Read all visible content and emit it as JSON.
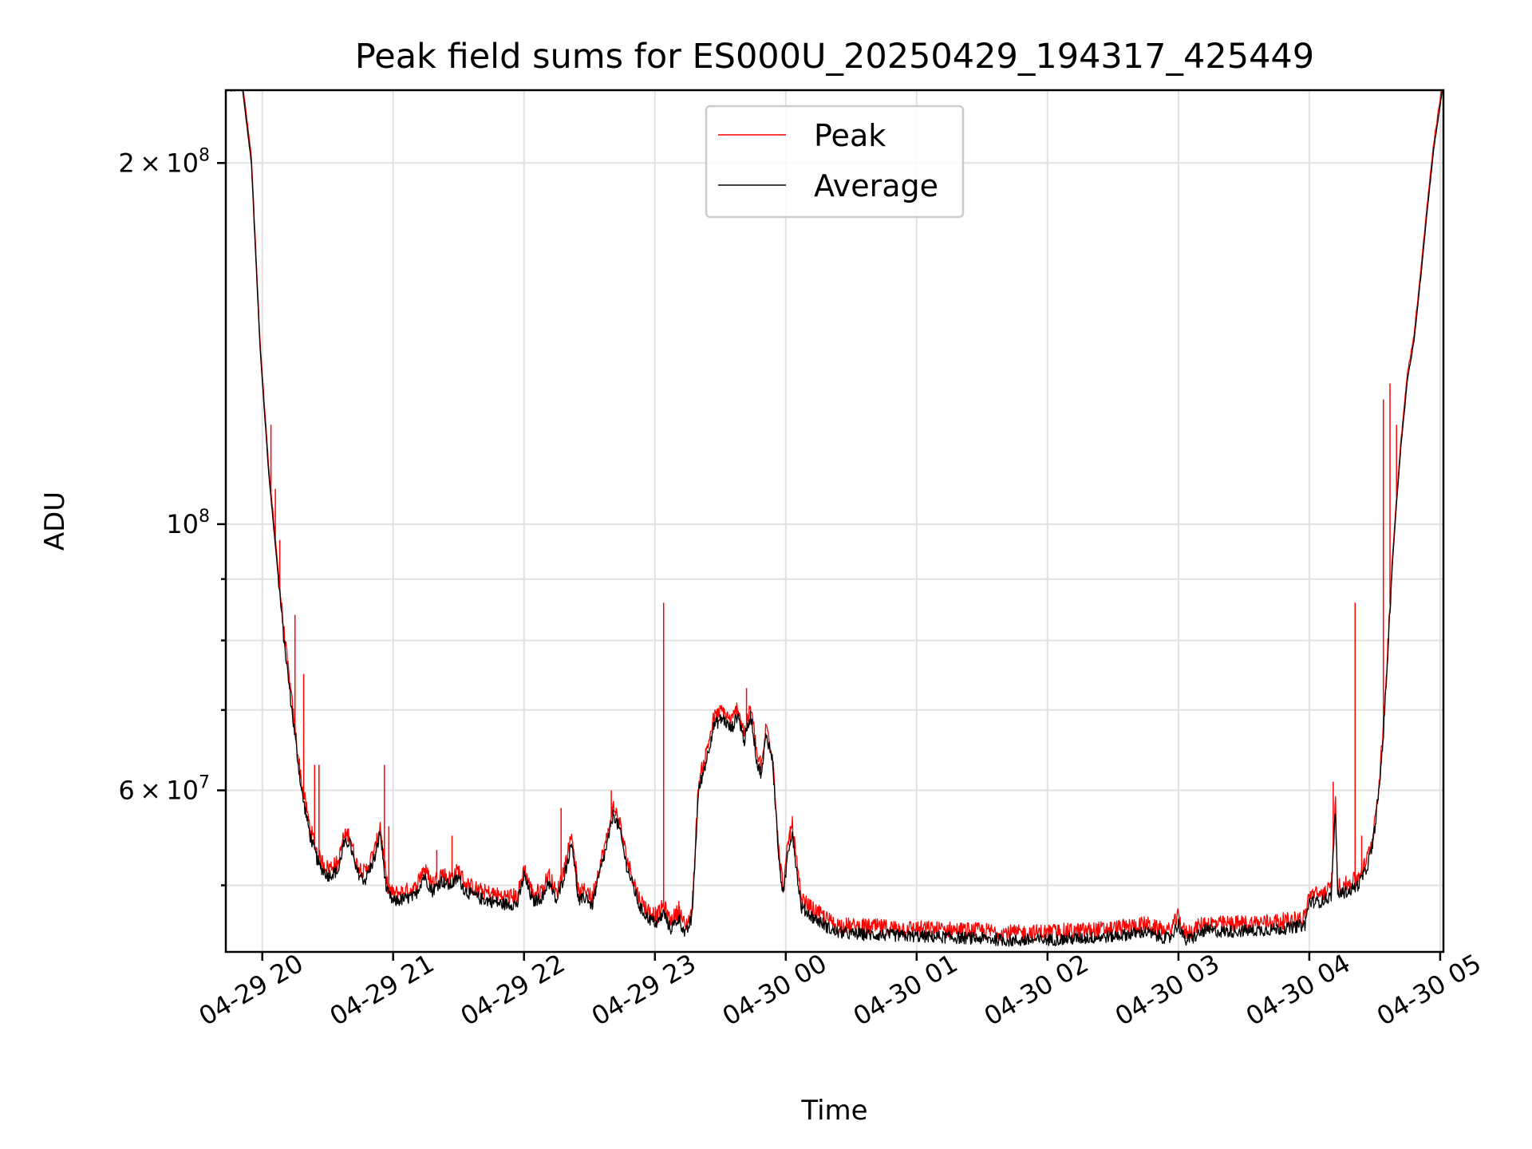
{
  "chart_data": {
    "type": "line",
    "title": "Peak field sums for ES000U_20250429_194317_425449",
    "xlabel": "Time",
    "ylabel": "ADU",
    "y_scale": "log",
    "ylim": [
      44000000,
      230000000
    ],
    "xlim": [
      "2025-04-29 19:43:17",
      "2025-04-30 05:01:30"
    ],
    "grid": true,
    "legend_position": "top-center",
    "x_ticks": [
      {
        "t": "2025-04-29 20:00",
        "label": "04-29 20"
      },
      {
        "t": "2025-04-29 21:00",
        "label": "04-29 21"
      },
      {
        "t": "2025-04-29 22:00",
        "label": "04-29 22"
      },
      {
        "t": "2025-04-29 23:00",
        "label": "04-29 23"
      },
      {
        "t": "2025-04-30 00:00",
        "label": "04-30 00"
      },
      {
        "t": "2025-04-30 01:00",
        "label": "04-30 01"
      },
      {
        "t": "2025-04-30 02:00",
        "label": "04-30 02"
      },
      {
        "t": "2025-04-30 03:00",
        "label": "04-30 03"
      },
      {
        "t": "2025-04-30 04:00",
        "label": "04-30 04"
      },
      {
        "t": "2025-04-30 05:00",
        "label": "04-30 05"
      }
    ],
    "y_ticks": [
      {
        "v": 60000000,
        "label_base": "6 × 10",
        "label_exp": "7"
      },
      {
        "v": 100000000,
        "label_base": "10",
        "label_exp": "8"
      },
      {
        "v": 200000000,
        "label_base": "2 × 10",
        "label_exp": "8"
      }
    ],
    "y_minor_ticks": [
      50000000,
      70000000,
      80000000,
      90000000
    ],
    "series": [
      {
        "name": "Average",
        "color": "#000000",
        "points": [
          [
            "2025-04-29 19:43",
            230000000
          ],
          [
            "2025-04-29 19:51",
            230000000
          ],
          [
            "2025-04-29 19:55",
            200000000
          ],
          [
            "2025-04-29 19:59",
            140000000
          ],
          [
            "2025-04-29 20:03",
            110000000
          ],
          [
            "2025-04-29 20:06",
            96000000
          ],
          [
            "2025-04-29 20:10",
            80000000
          ],
          [
            "2025-04-29 20:14",
            69000000
          ],
          [
            "2025-04-29 20:18",
            60000000
          ],
          [
            "2025-04-29 20:22",
            55000000
          ],
          [
            "2025-04-29 20:26",
            52000000
          ],
          [
            "2025-04-29 20:30",
            51000000
          ],
          [
            "2025-04-29 20:35",
            51500000
          ],
          [
            "2025-04-29 20:37",
            54000000
          ],
          [
            "2025-04-29 20:40",
            54500000
          ],
          [
            "2025-04-29 20:43",
            51500000
          ],
          [
            "2025-04-29 20:47",
            50500000
          ],
          [
            "2025-04-29 20:52",
            53000000
          ],
          [
            "2025-04-29 20:54",
            55500000
          ],
          [
            "2025-04-29 20:57",
            49500000
          ],
          [
            "2025-04-29 21:00",
            48500000
          ],
          [
            "2025-04-29 21:10",
            49000000
          ],
          [
            "2025-04-29 21:14",
            51000000
          ],
          [
            "2025-04-29 21:18",
            49500000
          ],
          [
            "2025-04-29 21:22",
            50500000
          ],
          [
            "2025-04-29 21:26",
            50000000
          ],
          [
            "2025-04-29 21:30",
            50800000
          ],
          [
            "2025-04-29 21:33",
            49500000
          ],
          [
            "2025-04-29 21:40",
            48800000
          ],
          [
            "2025-04-29 21:50",
            48300000
          ],
          [
            "2025-04-29 21:57",
            48300000
          ],
          [
            "2025-04-29 22:00",
            51000000
          ],
          [
            "2025-04-29 22:04",
            48500000
          ],
          [
            "2025-04-29 22:09",
            49000000
          ],
          [
            "2025-04-29 22:11",
            50500000
          ],
          [
            "2025-04-29 22:15",
            48500000
          ],
          [
            "2025-04-29 22:19",
            51500000
          ],
          [
            "2025-04-29 22:22",
            54500000
          ],
          [
            "2025-04-29 22:25",
            48500000
          ],
          [
            "2025-04-29 22:29",
            49000000
          ],
          [
            "2025-04-29 22:31",
            48000000
          ],
          [
            "2025-04-29 22:35",
            51500000
          ],
          [
            "2025-04-29 22:38",
            54000000
          ],
          [
            "2025-04-29 22:41",
            57500000
          ],
          [
            "2025-04-29 22:44",
            55500000
          ],
          [
            "2025-04-29 22:47",
            52000000
          ],
          [
            "2025-04-29 22:50",
            50000000
          ],
          [
            "2025-04-29 22:53",
            48000000
          ],
          [
            "2025-04-29 22:57",
            47000000
          ],
          [
            "2025-04-29 23:01",
            46500000
          ],
          [
            "2025-04-29 23:04",
            47500000
          ],
          [
            "2025-04-29 23:07",
            46000000
          ],
          [
            "2025-04-29 23:11",
            47000000
          ],
          [
            "2025-04-29 23:14",
            45500000
          ],
          [
            "2025-04-29 23:17",
            47000000
          ],
          [
            "2025-04-29 23:20",
            60000000
          ],
          [
            "2025-04-29 23:23",
            63000000
          ],
          [
            "2025-04-29 23:27",
            68000000
          ],
          [
            "2025-04-29 23:31",
            69000000
          ],
          [
            "2025-04-29 23:35",
            67500000
          ],
          [
            "2025-04-29 23:38",
            69500000
          ],
          [
            "2025-04-29 23:41",
            66000000
          ],
          [
            "2025-04-29 23:44",
            69500000
          ],
          [
            "2025-04-29 23:47",
            63000000
          ],
          [
            "2025-04-29 23:49",
            62000000
          ],
          [
            "2025-04-29 23:51",
            67000000
          ],
          [
            "2025-04-29 23:54",
            63500000
          ],
          [
            "2025-04-29 23:57",
            52000000
          ],
          [
            "2025-04-29 23:59",
            49000000
          ],
          [
            "2025-04-30 00:01",
            53500000
          ],
          [
            "2025-04-30 00:03",
            55500000
          ],
          [
            "2025-04-30 00:05",
            51500000
          ],
          [
            "2025-04-30 00:07",
            48000000
          ],
          [
            "2025-04-30 00:10",
            47500000
          ],
          [
            "2025-04-30 00:13",
            47000000
          ],
          [
            "2025-04-30 00:17",
            46500000
          ],
          [
            "2025-04-30 00:22",
            45800000
          ],
          [
            "2025-04-30 00:30",
            45600000
          ],
          [
            "2025-04-30 00:45",
            45500000
          ],
          [
            "2025-04-30 01:00",
            45400000
          ],
          [
            "2025-04-30 01:15",
            45300000
          ],
          [
            "2025-04-30 01:30",
            45200000
          ],
          [
            "2025-04-30 01:45",
            45000000
          ],
          [
            "2025-04-30 02:00",
            45100000
          ],
          [
            "2025-04-30 02:15",
            45200000
          ],
          [
            "2025-04-30 02:30",
            45400000
          ],
          [
            "2025-04-30 02:42",
            45700000
          ],
          [
            "2025-04-30 02:45",
            45800000
          ],
          [
            "2025-04-30 02:50",
            45400000
          ],
          [
            "2025-04-30 02:56",
            45200000
          ],
          [
            "2025-04-30 03:00",
            46500000
          ],
          [
            "2025-04-30 03:03",
            45000000
          ],
          [
            "2025-04-30 03:07",
            45300000
          ],
          [
            "2025-04-30 03:12",
            45900000
          ],
          [
            "2025-04-30 03:20",
            45800000
          ],
          [
            "2025-04-30 03:35",
            45900000
          ],
          [
            "2025-04-30 03:50",
            46100000
          ],
          [
            "2025-04-30 03:58",
            46400000
          ],
          [
            "2025-04-30 04:00",
            48500000
          ],
          [
            "2025-04-30 04:05",
            48500000
          ],
          [
            "2025-04-30 04:10",
            49000000
          ],
          [
            "2025-04-30 04:12",
            58000000
          ],
          [
            "2025-04-30 04:13",
            49200000
          ],
          [
            "2025-04-30 04:18",
            49500000
          ],
          [
            "2025-04-30 04:22",
            50000000
          ],
          [
            "2025-04-30 04:26",
            51500000
          ],
          [
            "2025-04-30 04:29",
            54000000
          ],
          [
            "2025-04-30 04:32",
            60000000
          ],
          [
            "2025-04-30 04:34",
            67000000
          ],
          [
            "2025-04-30 04:36",
            78000000
          ],
          [
            "2025-04-30 04:38",
            92000000
          ],
          [
            "2025-04-30 04:40",
            104000000
          ],
          [
            "2025-04-30 04:42",
            116000000
          ],
          [
            "2025-04-30 04:45",
            132000000
          ],
          [
            "2025-04-30 04:48",
            142000000
          ],
          [
            "2025-04-30 04:51",
            160000000
          ],
          [
            "2025-04-30 04:54",
            182000000
          ],
          [
            "2025-04-30 04:57",
            205000000
          ],
          [
            "2025-04-30 05:01",
            230000000
          ]
        ],
        "noise": 0.012
      },
      {
        "name": "Peak",
        "color": "#ff0000",
        "offset_ratio": 1.012,
        "noise": 0.016,
        "spikes": [
          [
            "2025-04-29 20:04",
            121000000
          ],
          [
            "2025-04-29 20:06",
            107000000
          ],
          [
            "2025-04-29 20:08",
            97000000
          ],
          [
            "2025-04-29 20:15",
            84000000
          ],
          [
            "2025-04-29 20:19",
            75000000
          ],
          [
            "2025-04-29 20:24",
            63000000
          ],
          [
            "2025-04-29 20:26",
            63000000
          ],
          [
            "2025-04-29 20:56",
            63000000
          ],
          [
            "2025-04-29 20:58",
            56000000
          ],
          [
            "2025-04-29 21:20",
            53500000
          ],
          [
            "2025-04-29 21:27",
            55000000
          ],
          [
            "2025-04-29 22:17",
            58000000
          ],
          [
            "2025-04-29 22:40",
            60000000
          ],
          [
            "2025-04-29 23:04",
            86000000
          ],
          [
            "2025-04-29 23:11",
            48500000
          ],
          [
            "2025-04-29 23:42",
            73000000
          ],
          [
            "2025-04-30 00:02",
            56000000
          ],
          [
            "2025-04-30 04:11",
            61000000
          ],
          [
            "2025-04-30 04:21",
            86000000
          ],
          [
            "2025-04-30 04:24",
            55000000
          ],
          [
            "2025-04-30 04:34",
            127000000
          ],
          [
            "2025-04-30 04:37",
            131000000
          ],
          [
            "2025-04-30 04:40",
            121000000
          ]
        ]
      }
    ]
  }
}
